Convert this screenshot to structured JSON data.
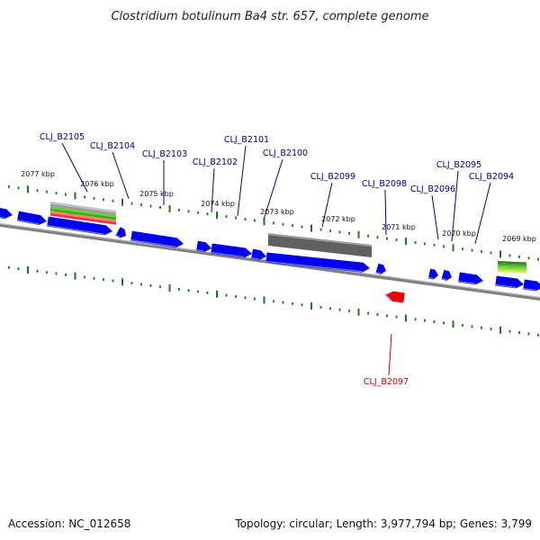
{
  "title": "Clostridium botulinum Ba4 str. 657, complete genome",
  "footer": {
    "accession": "Accession: NC_012658",
    "summary": "Topology: circular; Length: 3,977,794 bp; Genes: 3,799"
  },
  "colors": {
    "forward_gene": "#0000ee",
    "reverse_gene": "#ee0000",
    "backbone": "#808080",
    "tick": "#1a7a1a",
    "label_forward": "#00008b",
    "label_reverse": "#cc0000",
    "feature_grey": "#606060"
  },
  "tick_labels": [
    "2077 kbp",
    "2076 kbp",
    "2075 kbp",
    "2074 kbp",
    "2073 kbp",
    "2072 kbp",
    "2071 kbp",
    "2070 kbp",
    "2069 kbp"
  ],
  "gene_labels": [
    {
      "text": "CLJ_B2105",
      "strand": "forward"
    },
    {
      "text": "CLJ_B2104",
      "strand": "forward"
    },
    {
      "text": "CLJ_B2103",
      "strand": "forward"
    },
    {
      "text": "CLJ_B2102",
      "strand": "forward"
    },
    {
      "text": "CLJ_B2101",
      "strand": "forward"
    },
    {
      "text": "CLJ_B2100",
      "strand": "forward"
    },
    {
      "text": "CLJ_B2099",
      "strand": "forward"
    },
    {
      "text": "CLJ_B2098",
      "strand": "forward"
    },
    {
      "text": "CLJ_B2096",
      "strand": "forward"
    },
    {
      "text": "CLJ_B2095",
      "strand": "forward"
    },
    {
      "text": "CLJ_B2094",
      "strand": "forward"
    },
    {
      "text": "CLJ_B2097",
      "strand": "reverse"
    }
  ]
}
